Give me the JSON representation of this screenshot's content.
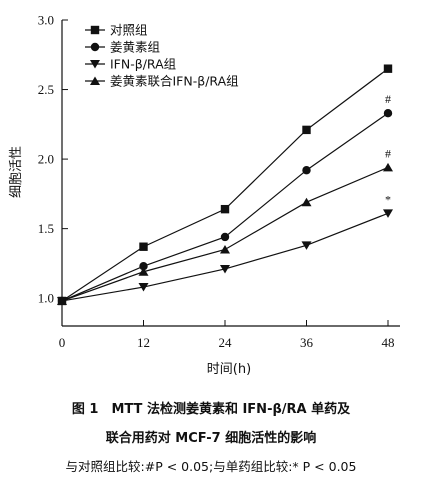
{
  "chart_data": {
    "type": "line",
    "xlabel": "时间(h)",
    "ylabel": "细胞活性",
    "xlim": [
      0,
      48
    ],
    "ylim": [
      0.8,
      3.0
    ],
    "x_ticks": [
      0,
      12,
      24,
      36,
      48
    ],
    "y_ticks": [
      1.0,
      1.5,
      2.0,
      2.5,
      3.0
    ],
    "x_tick_labels": [
      "0",
      "12",
      "24",
      "36",
      "48"
    ],
    "y_tick_labels": [
      "1.0",
      "1.5",
      "2.0",
      "2.5",
      "3.0"
    ],
    "x": [
      0,
      12,
      24,
      36,
      48
    ],
    "legend_position": "top-left",
    "series": [
      {
        "name": "对照组",
        "marker": "square",
        "values": [
          0.98,
          1.37,
          1.64,
          2.21,
          2.65
        ],
        "annotation": ""
      },
      {
        "name": "姜黄素组",
        "marker": "circle",
        "values": [
          0.98,
          1.23,
          1.44,
          1.92,
          2.33
        ],
        "annotation": "#"
      },
      {
        "name": "IFN-β/RA组",
        "marker": "triangle-down",
        "values": [
          0.98,
          1.08,
          1.21,
          1.38,
          1.61
        ],
        "annotation": "*"
      },
      {
        "name": "姜黄素联合IFN-β/RA组",
        "marker": "triangle-up",
        "values": [
          0.98,
          1.19,
          1.35,
          1.69,
          1.94
        ],
        "annotation": "#"
      }
    ]
  },
  "caption": {
    "line1": "图 1　MTT 法检测姜黄素和 IFN-β/RA 单药及",
    "line2": "联合用药对 MCF-7 细胞活性的影响",
    "note": "与对照组比较:#P < 0.05;与单药组比较:* P < 0.05"
  }
}
